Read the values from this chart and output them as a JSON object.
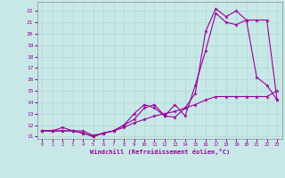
{
  "xlabel": "Windchill (Refroidissement éolien,°C)",
  "xlim": [
    -0.5,
    23.5
  ],
  "ylim": [
    10.8,
    22.8
  ],
  "yticks": [
    11,
    12,
    13,
    14,
    15,
    16,
    17,
    18,
    19,
    20,
    21,
    22
  ],
  "xticks": [
    0,
    1,
    2,
    3,
    4,
    5,
    6,
    7,
    8,
    9,
    10,
    11,
    12,
    13,
    14,
    15,
    16,
    17,
    18,
    19,
    20,
    21,
    22,
    23
  ],
  "bg_color": "#c8e8e8",
  "line_color": "#990099",
  "series1_x": [
    0,
    1,
    2,
    3,
    4,
    5,
    6,
    7,
    8,
    9,
    10,
    11,
    12,
    13,
    14,
    15,
    16,
    17,
    18,
    19,
    20,
    21,
    22,
    23
  ],
  "series1_y": [
    11.5,
    11.5,
    11.5,
    11.5,
    11.5,
    11.1,
    11.3,
    11.5,
    11.8,
    12.2,
    12.5,
    12.8,
    13.0,
    13.2,
    13.5,
    13.8,
    14.2,
    14.5,
    14.5,
    14.5,
    14.5,
    14.5,
    14.5,
    15.0
  ],
  "series2_x": [
    0,
    1,
    2,
    3,
    4,
    5,
    6,
    7,
    8,
    9,
    10,
    11,
    12,
    13,
    14,
    15,
    16,
    17,
    18,
    19,
    20,
    21,
    22,
    23
  ],
  "series2_y": [
    11.5,
    11.5,
    11.5,
    11.5,
    11.3,
    11.0,
    11.3,
    11.5,
    12.0,
    12.5,
    13.5,
    13.8,
    12.8,
    13.8,
    12.8,
    15.5,
    18.5,
    21.8,
    21.0,
    20.8,
    21.2,
    21.2,
    21.2,
    14.2
  ],
  "series3_x": [
    0,
    1,
    2,
    3,
    4,
    5,
    6,
    7,
    8,
    9,
    10,
    11,
    12,
    13,
    14,
    15,
    16,
    17,
    18,
    19,
    20,
    21,
    22,
    23
  ],
  "series3_y": [
    11.5,
    11.5,
    11.8,
    11.5,
    11.3,
    11.0,
    11.3,
    11.5,
    12.0,
    13.0,
    13.8,
    13.5,
    12.8,
    12.7,
    13.5,
    14.8,
    20.2,
    22.2,
    21.5,
    22.0,
    21.2,
    16.2,
    15.5,
    14.2
  ]
}
